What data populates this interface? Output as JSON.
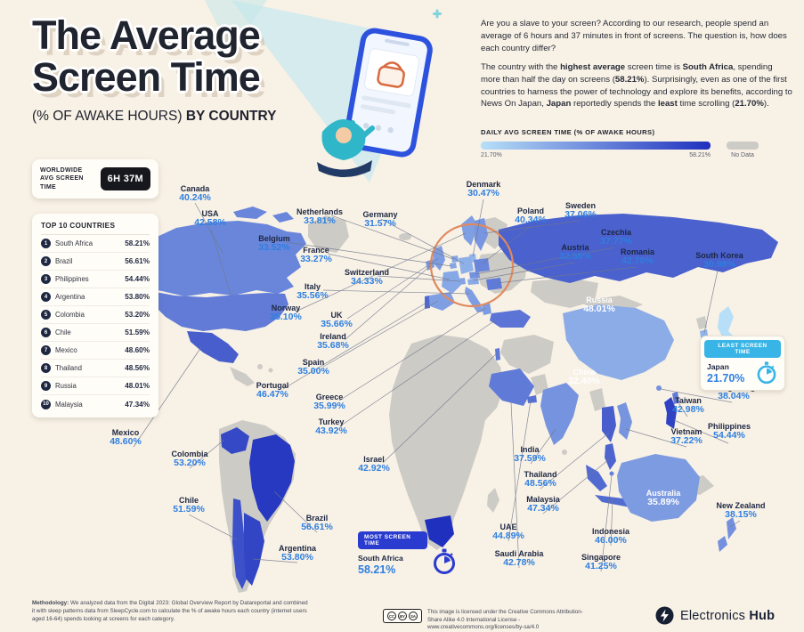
{
  "header": {
    "title_line1": "The Average",
    "title_line2": "Screen Time",
    "subtitle_plain": "(% OF AWAKE HOURS) ",
    "subtitle_bold": "BY COUNTRY",
    "intro_p1": "Are you a slave to your screen? According to our research, people spend an average of 6 hours and 37 minutes in front of screens. The question is, how does each country differ?",
    "intro_p2": [
      {
        "t": "The country with the "
      },
      {
        "t": "highest average",
        "b": true
      },
      {
        "t": " screen time is "
      },
      {
        "t": "South Africa",
        "b": true
      },
      {
        "t": ", spending more than half the day on screens ("
      },
      {
        "t": "58.21%",
        "b": true
      },
      {
        "t": "). Surprisingly, even as one of the first countries to harness the power of technology and explore its benefits, according to News On Japan, "
      },
      {
        "t": "Japan",
        "b": true
      },
      {
        "t": " reportedly spends the "
      },
      {
        "t": "least",
        "b": true
      },
      {
        "t": " time scrolling ("
      },
      {
        "t": "21.70%",
        "b": true
      },
      {
        "t": ")."
      }
    ]
  },
  "legend": {
    "title": "DAILY AVG SCREEN TIME (% OF AWAKE HOURS)",
    "min_label": "21.70%",
    "max_label": "58.21%",
    "no_data_label": "No Data",
    "scale": {
      "min": 21.7,
      "max": 58.21,
      "min_color": "#B7DFF8",
      "max_color": "#2030BE",
      "no_data_color": "#CDCBC6"
    }
  },
  "worldwide": {
    "label": "WORLDWIDE AVG SCREEN TIME",
    "value": "6H 37M"
  },
  "top10": {
    "title": "TOP 10 COUNTRIES",
    "items": [
      {
        "rank": "1",
        "country": "South Africa",
        "value": "58.21%"
      },
      {
        "rank": "2",
        "country": "Brazil",
        "value": "56.61%"
      },
      {
        "rank": "3",
        "country": "Philippines",
        "value": "54.44%"
      },
      {
        "rank": "4",
        "country": "Argentina",
        "value": "53.80%"
      },
      {
        "rank": "5",
        "country": "Colombia",
        "value": "53.20%"
      },
      {
        "rank": "6",
        "country": "Chile",
        "value": "51.59%"
      },
      {
        "rank": "7",
        "country": "Mexico",
        "value": "48.60%"
      },
      {
        "rank": "8",
        "country": "Thailand",
        "value": "48.56%"
      },
      {
        "rank": "9",
        "country": "Russia",
        "value": "48.01%"
      },
      {
        "rank": "10",
        "country": "Malaysia",
        "value": "47.34%"
      }
    ]
  },
  "map": {
    "labels": [
      {
        "country": "Canada",
        "value": "40.24%"
      },
      {
        "country": "USA",
        "value": "42.58%"
      },
      {
        "country": "Netherlands",
        "value": "33.81%"
      },
      {
        "country": "Germany",
        "value": "31.57%"
      },
      {
        "country": "Belgium",
        "value": "33.52%"
      },
      {
        "country": "France",
        "value": "33.27%"
      },
      {
        "country": "Switzerland",
        "value": "34.33%"
      },
      {
        "country": "Italy",
        "value": "35.56%"
      },
      {
        "country": "Norway",
        "value": "35.10%"
      },
      {
        "country": "UK",
        "value": "35.66%"
      },
      {
        "country": "Ireland",
        "value": "35.68%"
      },
      {
        "country": "Spain",
        "value": "35.00%"
      },
      {
        "country": "Portugal",
        "value": "46.47%"
      },
      {
        "country": "Greece",
        "value": "35.99%"
      },
      {
        "country": "Turkey",
        "value": "43.92%"
      },
      {
        "country": "Israel",
        "value": "42.92%"
      },
      {
        "country": "Denmark",
        "value": "30.47%"
      },
      {
        "country": "Poland",
        "value": "40.34%"
      },
      {
        "country": "Sweden",
        "value": "37.06%"
      },
      {
        "country": "Czechia",
        "value": "37.77%"
      },
      {
        "country": "Austria",
        "value": "32.68%"
      },
      {
        "country": "Romania",
        "value": "42.70%"
      },
      {
        "country": "South Korea",
        "value": "30.98%"
      },
      {
        "country": "Russia",
        "value": "48.01%"
      },
      {
        "country": "China",
        "value": "32.40%"
      },
      {
        "country": "Hong Kong",
        "value": "38.04%"
      },
      {
        "country": "Taiwan",
        "value": "42.98%"
      },
      {
        "country": "Philippines",
        "value": "54.44%"
      },
      {
        "country": "Vietnam",
        "value": "37.22%"
      },
      {
        "country": "India",
        "value": "37.59%"
      },
      {
        "country": "Thailand",
        "value": "48.56%"
      },
      {
        "country": "Malaysia",
        "value": "47.34%"
      },
      {
        "country": "Australia",
        "value": "35.89%"
      },
      {
        "country": "New Zealand",
        "value": "38.15%"
      },
      {
        "country": "Indonesia",
        "value": "46.00%"
      },
      {
        "country": "Singapore",
        "value": "41.25%"
      },
      {
        "country": "UAE",
        "value": "44.89%"
      },
      {
        "country": "Saudi Arabia",
        "value": "42.78%"
      },
      {
        "country": "Mexico",
        "value": "48.60%"
      },
      {
        "country": "Colombia",
        "value": "53.20%"
      },
      {
        "country": "Chile",
        "value": "51.59%"
      },
      {
        "country": "Brazil",
        "value": "56.61%"
      },
      {
        "country": "Argentina",
        "value": "53.80%"
      }
    ],
    "most": {
      "title": "MOST SCREEN TIME",
      "country": "South Africa",
      "value": "58.21%"
    },
    "least": {
      "title": "LEAST SCREEN TIME",
      "country": "Japan",
      "value": "21.70%"
    }
  },
  "footer": {
    "methodology_label": "Methodology:",
    "methodology_text": " We analyzed data from the Digital 2023: Global Overview Report by Datareportal and combined it with sleep patterns data from SleepCycle.com to calculate the % of awake hours each country (internet users aged 16-64) spends looking at screens for each category.",
    "license_text": "This image is licensed under the Creative Commons Attribution-Share Alike 4.0 International License - www.creativecommons.org/licenses/by-sa/4.0",
    "cc_icons": [
      "CC",
      "BY",
      "SA"
    ],
    "logo_text1": "Electronics",
    "logo_text2": "Hub"
  },
  "chart_data": {
    "type": "heatmap",
    "subtype": "choropleth-world-map",
    "title": "The Average Screen Time (% of Awake Hours) by Country",
    "unit": "percent_of_awake_hours",
    "value_range": [
      21.7,
      58.21
    ],
    "worldwide_avg_label": "6H 37M",
    "legend": "Daily avg screen time (% of awake hours), light blue = 21.70%, dark blue = 58.21%, gray = no data",
    "points": [
      {
        "country": "South Africa",
        "value": 58.21
      },
      {
        "country": "Brazil",
        "value": 56.61
      },
      {
        "country": "Philippines",
        "value": 54.44
      },
      {
        "country": "Argentina",
        "value": 53.8
      },
      {
        "country": "Colombia",
        "value": 53.2
      },
      {
        "country": "Chile",
        "value": 51.59
      },
      {
        "country": "Mexico",
        "value": 48.6
      },
      {
        "country": "Thailand",
        "value": 48.56
      },
      {
        "country": "Russia",
        "value": 48.01
      },
      {
        "country": "Malaysia",
        "value": 47.34
      },
      {
        "country": "Portugal",
        "value": 46.47
      },
      {
        "country": "Indonesia",
        "value": 46.0
      },
      {
        "country": "UAE",
        "value": 44.89
      },
      {
        "country": "Turkey",
        "value": 43.92
      },
      {
        "country": "Taiwan",
        "value": 42.98
      },
      {
        "country": "Israel",
        "value": 42.92
      },
      {
        "country": "Saudi Arabia",
        "value": 42.78
      },
      {
        "country": "Romania",
        "value": 42.7
      },
      {
        "country": "USA",
        "value": 42.58
      },
      {
        "country": "Singapore",
        "value": 41.25
      },
      {
        "country": "Poland",
        "value": 40.34
      },
      {
        "country": "Canada",
        "value": 40.24
      },
      {
        "country": "New Zealand",
        "value": 38.15
      },
      {
        "country": "Hong Kong",
        "value": 38.04
      },
      {
        "country": "Czechia",
        "value": 37.77
      },
      {
        "country": "India",
        "value": 37.59
      },
      {
        "country": "Vietnam",
        "value": 37.22
      },
      {
        "country": "Sweden",
        "value": 37.06
      },
      {
        "country": "Greece",
        "value": 35.99
      },
      {
        "country": "Australia",
        "value": 35.89
      },
      {
        "country": "Ireland",
        "value": 35.68
      },
      {
        "country": "UK",
        "value": 35.66
      },
      {
        "country": "Italy",
        "value": 35.56
      },
      {
        "country": "Norway",
        "value": 35.1
      },
      {
        "country": "Spain",
        "value": 35.0
      },
      {
        "country": "Switzerland",
        "value": 34.33
      },
      {
        "country": "Netherlands",
        "value": 33.81
      },
      {
        "country": "Belgium",
        "value": 33.52
      },
      {
        "country": "France",
        "value": 33.27
      },
      {
        "country": "Austria",
        "value": 32.68
      },
      {
        "country": "China",
        "value": 32.4
      },
      {
        "country": "Germany",
        "value": 31.57
      },
      {
        "country": "South Korea",
        "value": 30.98
      },
      {
        "country": "Denmark",
        "value": 30.47
      },
      {
        "country": "Japan",
        "value": 21.7
      }
    ]
  }
}
